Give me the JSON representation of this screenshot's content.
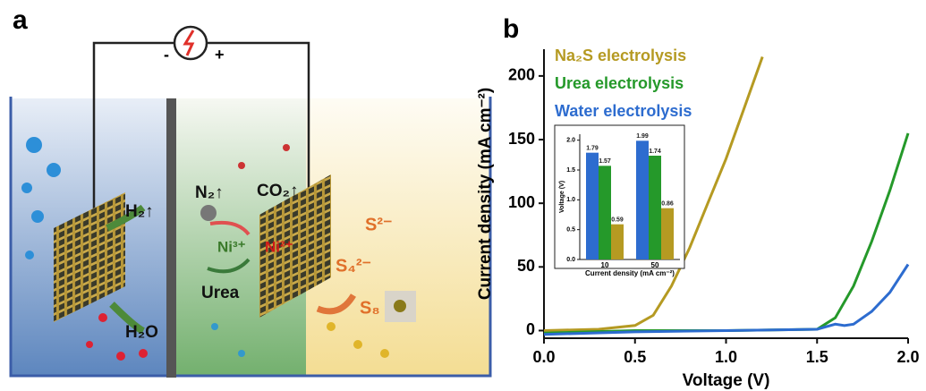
{
  "panel_labels": [
    "a",
    "b"
  ],
  "diagram": {
    "source_minus": "-",
    "source_plus": "+",
    "h2": "H₂↑",
    "h2o": "H₂O",
    "n2": "N₂↑",
    "co2": "CO₂↑",
    "ni3": "Ni³⁺",
    "ni2": "Ni²⁺",
    "urea": "Urea",
    "s2": "S²⁻",
    "s4": "S₄²⁻",
    "s8": "S₈"
  },
  "chart_data": [
    {
      "type": "line",
      "xlabel": "Voltage (V)",
      "ylabel": "Current density (mA cm⁻²)",
      "xlim": [
        0,
        2
      ],
      "ylim": [
        -6,
        221
      ],
      "xticks": [
        {
          "value": 0,
          "label": "0.0"
        },
        0.5,
        {
          "value": 1,
          "label": "1.0"
        },
        1.5,
        {
          "value": 2,
          "label": "2.0"
        }
      ],
      "yticks": [
        0,
        50,
        100,
        150,
        200
      ],
      "legend": "top-left",
      "series": [
        {
          "name": "Na₂S electrolysis",
          "color": "#b59a22",
          "x": [
            0,
            0.3,
            0.5,
            0.6,
            0.7,
            0.8,
            0.9,
            1.0,
            1.1,
            1.2
          ],
          "values": [
            0,
            1,
            4,
            12,
            35,
            65,
            100,
            135,
            175,
            215
          ]
        },
        {
          "name": "Urea electrolysis",
          "color": "#25992a",
          "x": [
            0,
            0.5,
            1.0,
            1.5,
            1.6,
            1.7,
            1.8,
            1.9,
            2.0
          ],
          "values": [
            -2,
            0,
            0,
            1,
            10,
            35,
            70,
            110,
            155
          ]
        },
        {
          "name": "Water electrolysis",
          "color": "#2d6ccf",
          "x": [
            0,
            0.5,
            1.0,
            1.5,
            1.6,
            1.65,
            1.7,
            1.8,
            1.9,
            2.0
          ],
          "values": [
            -3,
            -1,
            0,
            1,
            5,
            4,
            5,
            15,
            30,
            52
          ]
        }
      ]
    },
    {
      "type": "bar",
      "xlabel": "Current density (mA cm⁻²)",
      "ylabel": "Voltage (V)",
      "categories": [
        "10",
        "50"
      ],
      "ylim": [
        0,
        2.1
      ],
      "yticks": [
        {
          "value": 0,
          "label": "0.0"
        },
        0.5,
        {
          "value": 1,
          "label": "1.0"
        },
        1.5,
        {
          "value": 2,
          "label": "2.0"
        }
      ],
      "series": [
        {
          "color": "#2d6ccf",
          "values": [
            1.79,
            1.99
          ]
        },
        {
          "color": "#25992a",
          "values": [
            1.57,
            1.74
          ]
        },
        {
          "color": "#b59a22",
          "values": [
            0.59,
            0.86
          ]
        }
      ]
    }
  ]
}
